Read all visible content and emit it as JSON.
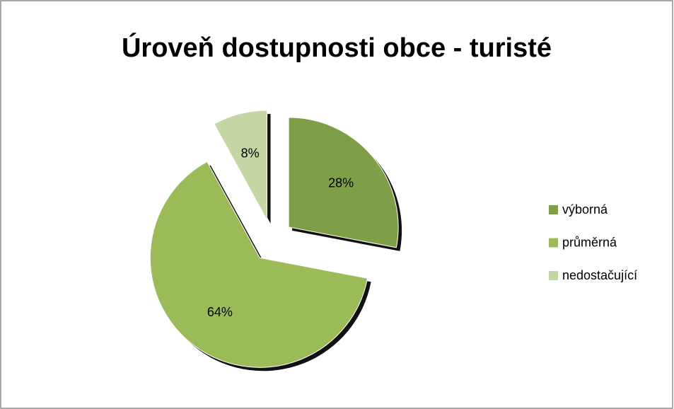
{
  "chart_data": {
    "type": "pie",
    "title": "Úroveň dostupnosti obce - turisté",
    "categories": [
      "výborná",
      "průměrná",
      "nedostačující"
    ],
    "values": [
      28,
      64,
      8
    ],
    "value_labels": [
      "28%",
      "64%",
      "8%"
    ],
    "colors": [
      "#7f9e48",
      "#9bbb59",
      "#c4d6a4"
    ],
    "legend": "right",
    "exploded": true
  }
}
